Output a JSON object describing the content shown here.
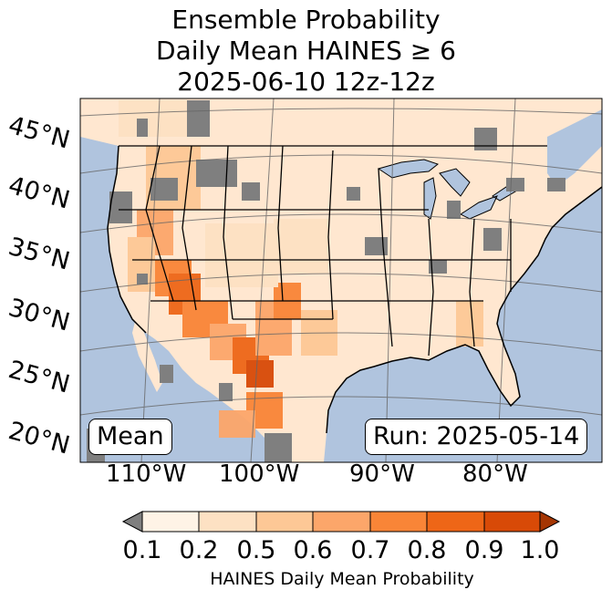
{
  "title": {
    "line1": "Ensemble Probability",
    "line2": "Daily Mean HAINES ≥ 6",
    "line3": "2025-06-10 12z-12z"
  },
  "lat_labels": [
    "45°N",
    "40°N",
    "35°N",
    "30°N",
    "25°N",
    "20°N"
  ],
  "lon_labels": [
    "110°W",
    "100°W",
    "90°W",
    "80°W"
  ],
  "stat_box": "Mean",
  "run_box": "Run: 2025-05-14",
  "colorbar": {
    "ticks": [
      "0.1",
      "0.2",
      "0.5",
      "0.6",
      "0.7",
      "0.8",
      "0.9",
      "1.0"
    ],
    "colors": [
      "#fef3e6",
      "#fde1c3",
      "#fdc896",
      "#fca66a",
      "#f98537",
      "#ee6617",
      "#d84a07"
    ],
    "under_color": "#7f7f7f",
    "over_color": "#a53603",
    "label": "HAINES Daily Mean Probability"
  },
  "colors": {
    "ocean": "#b0c4de",
    "land_base": "#ffe7d0",
    "missing": "#7f7f7f"
  }
}
